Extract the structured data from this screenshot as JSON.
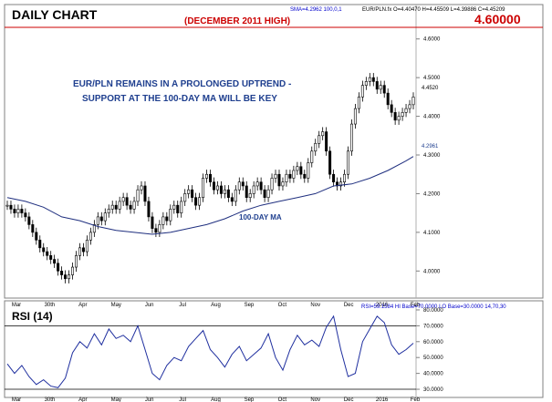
{
  "chart_data": [
    {
      "type": "line",
      "panel": "price",
      "title": "DAILY CHART",
      "indicator_text": "SMA=4.2962  100,0,1",
      "ohlc_text": "EUR/PLN.fx  O=4.40470 H=4.45509 L=4.39886 C=4.45209",
      "high_label": "(DECEMBER 2011 HIGH)",
      "high_value_label": "4.60000",
      "high_value": 4.6,
      "annotation_lines": [
        "EUR/PLN REMAINS IN A PROLONGED UPTREND -",
        "SUPPORT AT THE 100-DAY MA WILL BE KEY"
      ],
      "ma_label": "100-DAY MA",
      "current_price_label": "4.4520",
      "ma_price_label": "4.2961",
      "y_ticks": [
        "4.6000",
        "4.5000",
        "4.4000",
        "4.3000",
        "4.2000",
        "4.1000",
        "4.0000"
      ],
      "ylim": [
        3.93,
        4.63
      ],
      "x_labels": [
        "Mar",
        "30th",
        "Apr",
        "May",
        "Jun",
        "Jul",
        "Aug",
        "Sep",
        "Oct",
        "Nov",
        "Dec",
        "2016",
        "Feb"
      ],
      "series": [
        {
          "name": "EUR/PLN",
          "x": [
            0,
            4,
            8,
            12,
            16,
            20,
            24,
            28,
            32,
            36,
            40,
            44,
            48,
            52,
            56,
            60,
            64,
            68,
            72,
            76,
            80,
            84,
            88,
            92,
            96,
            100,
            104,
            108,
            112,
            116,
            120,
            124,
            128,
            132,
            136,
            140,
            144,
            148,
            152,
            156,
            160,
            164,
            168,
            172,
            176,
            180,
            184,
            188,
            192,
            196,
            200,
            204,
            208,
            212,
            216,
            220,
            224,
            228,
            232,
            236,
            240,
            244,
            248,
            252,
            256,
            260,
            264,
            268,
            272,
            276,
            280,
            284,
            288,
            292,
            296,
            300,
            304,
            308,
            312,
            316,
            320,
            324,
            328,
            332,
            336,
            340,
            344,
            348,
            352,
            356,
            360,
            364,
            368,
            372,
            376,
            380,
            384,
            388,
            392,
            396,
            400,
            404,
            408,
            412,
            416,
            420,
            424,
            428,
            432,
            436,
            440,
            444,
            448
          ],
          "values": [
            4.17,
            4.16,
            4.15,
            4.16,
            4.15,
            4.14,
            4.12,
            4.1,
            4.08,
            4.06,
            4.05,
            4.04,
            4.03,
            4.02,
            4.0,
            3.99,
            3.98,
            3.99,
            4.01,
            4.04,
            4.06,
            4.05,
            4.08,
            4.1,
            4.12,
            4.14,
            4.13,
            4.15,
            4.16,
            4.17,
            4.16,
            4.18,
            4.19,
            4.17,
            4.16,
            4.18,
            4.21,
            4.22,
            4.18,
            4.14,
            4.11,
            4.1,
            4.12,
            4.14,
            4.13,
            4.16,
            4.17,
            4.15,
            4.18,
            4.2,
            4.21,
            4.19,
            4.17,
            4.19,
            4.24,
            4.25,
            4.23,
            4.21,
            4.22,
            4.2,
            4.21,
            4.19,
            4.18,
            4.21,
            4.23,
            4.22,
            4.19,
            4.2,
            4.22,
            4.23,
            4.21,
            4.19,
            4.21,
            4.24,
            4.25,
            4.22,
            4.23,
            4.25,
            4.24,
            4.26,
            4.27,
            4.25,
            4.24,
            4.28,
            4.31,
            4.33,
            4.35,
            4.36,
            4.31,
            4.25,
            4.23,
            4.22,
            4.23,
            4.25,
            4.31,
            4.38,
            4.42,
            4.45,
            4.48,
            4.49,
            4.5,
            4.49,
            4.47,
            4.48,
            4.46,
            4.43,
            4.41,
            4.39,
            4.4,
            4.41,
            4.42,
            4.43,
            4.45
          ]
        },
        {
          "name": "100-DAY MA",
          "x": [
            0,
            20,
            40,
            60,
            80,
            100,
            120,
            140,
            160,
            180,
            200,
            220,
            240,
            260,
            280,
            300,
            320,
            340,
            360,
            380,
            400,
            420,
            440,
            448
          ],
          "values": [
            4.19,
            4.18,
            4.165,
            4.14,
            4.13,
            4.115,
            4.105,
            4.1,
            4.095,
            4.1,
            4.11,
            4.12,
            4.135,
            4.155,
            4.17,
            4.18,
            4.19,
            4.2,
            4.22,
            4.225,
            4.24,
            4.26,
            4.285,
            4.296
          ]
        }
      ]
    },
    {
      "type": "line",
      "panel": "rsi",
      "title": "RSI (14)",
      "readout_text": "RSI=59.1584  HI Base=70.0000  LO Base=30.0000   14,70,30",
      "y_ticks": [
        "80.0000",
        "70.0000",
        "60.0000",
        "50.0000",
        "40.0000",
        "30.0000"
      ],
      "ylim": [
        26,
        84
      ],
      "hi_base": 70,
      "lo_base": 30,
      "series": [
        {
          "name": "RSI",
          "x": [
            0,
            8,
            16,
            24,
            32,
            40,
            48,
            56,
            64,
            72,
            80,
            88,
            96,
            104,
            112,
            120,
            128,
            136,
            144,
            152,
            160,
            168,
            176,
            184,
            192,
            200,
            208,
            216,
            224,
            232,
            240,
            248,
            256,
            264,
            272,
            280,
            288,
            296,
            304,
            312,
            320,
            328,
            336,
            344,
            352,
            360,
            368,
            376,
            384,
            392,
            400,
            408,
            416,
            424,
            432,
            440,
            448
          ],
          "values": [
            46,
            40,
            45,
            38,
            33,
            36,
            32,
            31,
            37,
            53,
            60,
            56,
            65,
            58,
            68,
            62,
            64,
            60,
            70,
            55,
            40,
            36,
            45,
            50,
            48,
            57,
            62,
            67,
            55,
            50,
            44,
            52,
            57,
            48,
            52,
            56,
            65,
            50,
            42,
            55,
            64,
            58,
            61,
            57,
            69,
            76,
            55,
            38,
            40,
            60,
            68,
            76,
            72,
            58,
            52,
            55,
            59
          ]
        }
      ]
    }
  ]
}
